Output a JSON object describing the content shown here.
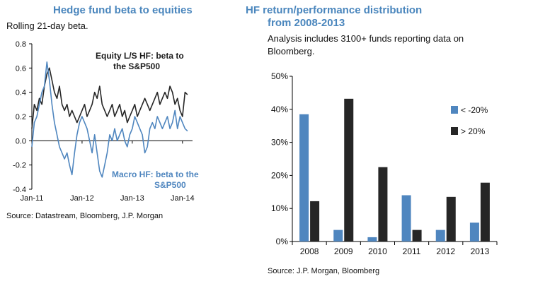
{
  "left_panel": {
    "title": "Hedge fund beta to equities",
    "subtitle": "Rolling 21-day beta.",
    "source": "Source: Datastream, Bloomberg, J.P. Morgan"
  },
  "right_panel": {
    "title_line1": "HF return/performance distribution",
    "title_line2": "from 2008-2013",
    "subtitle_line1": "Analysis includes 3100+ funds reporting data on",
    "subtitle_line2": "Bloomberg.",
    "source": "Source: J.P. Morgan, Bloomberg"
  },
  "colors": {
    "blue": "#4f86bf",
    "dark": "#262626",
    "title_blue": "#4a86bd"
  },
  "chart_data": [
    {
      "type": "line",
      "title": "Hedge fund beta to equities",
      "ylim": [
        -0.4,
        0.8
      ],
      "yticks": [
        "-0.4",
        "-0.2",
        "0.0",
        "0.2",
        "0.4",
        "0.6",
        "0.8"
      ],
      "ytick_values": [
        -0.4,
        -0.2,
        0.0,
        0.2,
        0.4,
        0.6,
        0.8
      ],
      "xticks": [
        "Jan-11",
        "Jan-12",
        "Jan-13",
        "Jan-14"
      ],
      "xtick_values": [
        2011.0,
        2012.0,
        2013.0,
        2014.0
      ],
      "xlim": [
        2011.0,
        2014.2
      ],
      "annotations": {
        "equity_line1": "Equity L/S HF: beta to",
        "equity_line2": "the S&P500",
        "macro_line1": "Macro HF: beta to the",
        "macro_line2": "S&P500"
      },
      "series": [
        {
          "name": "Equity L/S HF: beta to the S&P500",
          "color": "#262626",
          "x": [
            2011.0,
            2011.05,
            2011.1,
            2011.15,
            2011.2,
            2011.25,
            2011.3,
            2011.35,
            2011.4,
            2011.45,
            2011.5,
            2011.55,
            2011.6,
            2011.65,
            2011.7,
            2011.75,
            2011.8,
            2011.85,
            2011.9,
            2011.95,
            2012.0,
            2012.05,
            2012.1,
            2012.15,
            2012.2,
            2012.25,
            2012.3,
            2012.35,
            2012.4,
            2012.45,
            2012.5,
            2012.55,
            2012.6,
            2012.65,
            2012.7,
            2012.75,
            2012.8,
            2012.85,
            2012.9,
            2012.95,
            2013.0,
            2013.05,
            2013.1,
            2013.15,
            2013.2,
            2013.25,
            2013.3,
            2013.35,
            2013.4,
            2013.45,
            2013.5,
            2013.55,
            2013.6,
            2013.65,
            2013.7,
            2013.75,
            2013.8,
            2013.85,
            2013.9,
            2013.95,
            2014.0,
            2014.05,
            2014.1
          ],
          "y": [
            0.1,
            0.3,
            0.25,
            0.35,
            0.3,
            0.45,
            0.55,
            0.6,
            0.5,
            0.4,
            0.35,
            0.45,
            0.3,
            0.25,
            0.3,
            0.2,
            0.25,
            0.2,
            0.15,
            0.2,
            0.25,
            0.3,
            0.2,
            0.25,
            0.3,
            0.4,
            0.35,
            0.45,
            0.3,
            0.25,
            0.2,
            0.25,
            0.3,
            0.2,
            0.25,
            0.3,
            0.2,
            0.25,
            0.15,
            0.2,
            0.25,
            0.3,
            0.2,
            0.25,
            0.3,
            0.35,
            0.3,
            0.25,
            0.3,
            0.35,
            0.4,
            0.3,
            0.35,
            0.4,
            0.35,
            0.45,
            0.4,
            0.3,
            0.35,
            0.25,
            0.2,
            0.4,
            0.38
          ]
        },
        {
          "name": "Macro HF: beta to the S&P500",
          "color": "#4f86bf",
          "x": [
            2011.0,
            2011.05,
            2011.1,
            2011.15,
            2011.2,
            2011.25,
            2011.3,
            2011.35,
            2011.4,
            2011.45,
            2011.5,
            2011.55,
            2011.6,
            2011.65,
            2011.7,
            2011.75,
            2011.8,
            2011.85,
            2011.9,
            2011.95,
            2012.0,
            2012.05,
            2012.1,
            2012.15,
            2012.2,
            2012.25,
            2012.3,
            2012.35,
            2012.4,
            2012.45,
            2012.5,
            2012.55,
            2012.6,
            2012.65,
            2012.7,
            2012.75,
            2012.8,
            2012.85,
            2012.9,
            2012.95,
            2013.0,
            2013.05,
            2013.1,
            2013.15,
            2013.2,
            2013.25,
            2013.3,
            2013.35,
            2013.4,
            2013.45,
            2013.5,
            2013.55,
            2013.6,
            2013.65,
            2013.7,
            2013.75,
            2013.8,
            2013.85,
            2013.9,
            2013.95,
            2014.0,
            2014.05,
            2014.1
          ],
          "y": [
            -0.05,
            0.15,
            0.2,
            0.3,
            0.4,
            0.45,
            0.65,
            0.5,
            0.3,
            0.15,
            0.05,
            -0.05,
            -0.1,
            -0.15,
            -0.1,
            -0.2,
            -0.28,
            -0.1,
            0.05,
            0.15,
            0.2,
            0.15,
            0.1,
            0.0,
            -0.1,
            0.05,
            -0.1,
            -0.25,
            -0.3,
            -0.2,
            -0.1,
            0.05,
            0.0,
            0.1,
            0.0,
            0.05,
            0.1,
            0.0,
            -0.05,
            0.05,
            0.1,
            0.2,
            0.15,
            0.1,
            0.05,
            -0.1,
            -0.05,
            0.1,
            0.15,
            0.1,
            0.2,
            0.15,
            0.1,
            0.15,
            0.2,
            0.1,
            0.15,
            0.25,
            0.1,
            0.2,
            0.15,
            0.1,
            0.08
          ]
        }
      ]
    },
    {
      "type": "bar",
      "title": "HF return/performance distribution from 2008-2013",
      "categories": [
        "2008",
        "2009",
        "2010",
        "2011",
        "2012",
        "2013"
      ],
      "ylim": [
        0,
        50
      ],
      "yticks": [
        "0%",
        "10%",
        "20%",
        "30%",
        "40%",
        "50%"
      ],
      "ytick_values": [
        0,
        10,
        20,
        30,
        40,
        50
      ],
      "legend": "right",
      "series": [
        {
          "name": "< -20%",
          "color": "#4f86bf",
          "values": [
            38.5,
            3.5,
            1.3,
            14,
            3.5,
            5.7
          ]
        },
        {
          "name": "> 20%",
          "color": "#262626",
          "values": [
            12.2,
            43.2,
            22.5,
            3.5,
            13.5,
            17.8
          ]
        }
      ]
    }
  ]
}
